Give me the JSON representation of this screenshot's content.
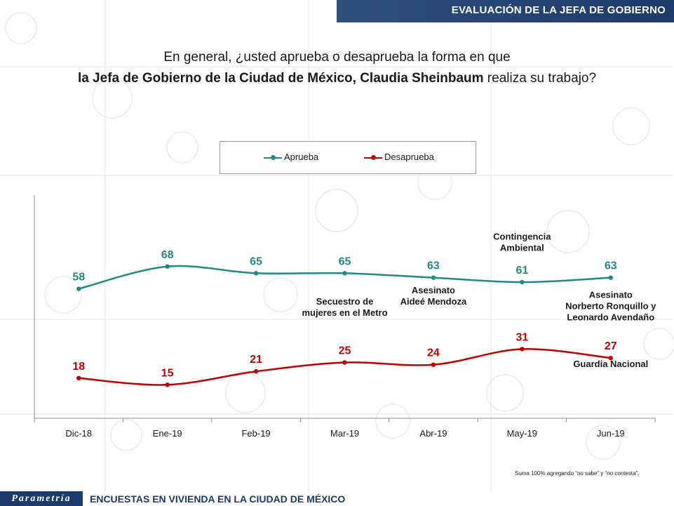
{
  "header": {
    "title": "EVALUACIÓN DE  LA JEFA DE GOBIERNO"
  },
  "question": {
    "line1": "En general, ¿usted aprueba o desaprueba la forma en que",
    "line2_bold": "la Jefa de Gobierno de la Ciudad de México, Claudia Sheinbaum",
    "line2_rest": " realiza su trabajo?"
  },
  "chart_data": {
    "type": "line",
    "categories": [
      "Dic-18",
      "Ene-19",
      "Feb-19",
      "Mar-19",
      "Abr-19",
      "May-19",
      "Jun-19"
    ],
    "series": [
      {
        "name": "Aprueba",
        "values": [
          58,
          68,
          65,
          65,
          63,
          61,
          63
        ],
        "color": "#1e8a80"
      },
      {
        "name": "Desaprueba",
        "values": [
          18,
          15,
          21,
          25,
          24,
          31,
          27
        ],
        "color": "#c00000"
      }
    ],
    "ylim": [
      0,
      100
    ],
    "legend": "top-center",
    "grid": false,
    "annotations": [
      {
        "text": [
          "Contingencia",
          "Ambiental"
        ],
        "category": "May-19",
        "value": 80
      },
      {
        "text": [
          "Secuestro de",
          "mujeres en el Metro"
        ],
        "category": "Mar-19",
        "value": 51
      },
      {
        "text": [
          "Asesinato",
          "Aideé Mendoza"
        ],
        "category": "Abr-19",
        "value": 56
      },
      {
        "text": [
          "Asesinato",
          "Norberto Ronquillo y",
          "Leonardo Avendaño"
        ],
        "category": "Jun-19",
        "value": 54
      },
      {
        "text": [
          "Guardia Nacional"
        ],
        "category": "Jun-19",
        "value": 23
      }
    ]
  },
  "footnote": "Suma 100%  agregando “no sabe” y “no contesta”.",
  "footer": {
    "logo": "Parametría",
    "text": "ENCUESTAS EN VIVIENDA EN LA CIUDAD DE MÉXICO"
  }
}
